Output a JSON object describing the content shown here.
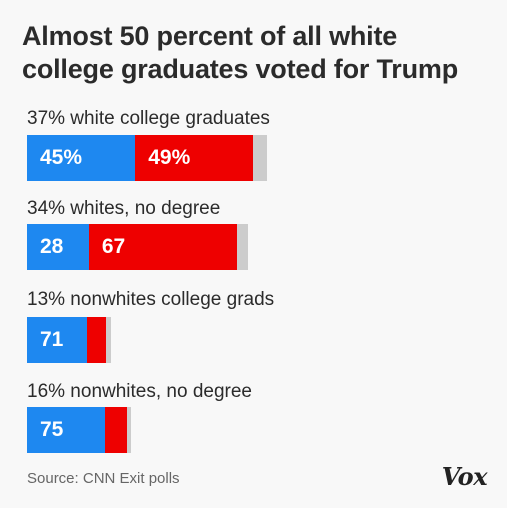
{
  "title": "Almost 50 percent of all white college graduates voted for Trump",
  "source": "Source: CNN Exit polls",
  "logo": "Vox",
  "colors": {
    "clinton": "#1e88f0",
    "trump": "#ee0000",
    "other": "#cccccc",
    "text": "#ffffff"
  },
  "chart_data": {
    "type": "bar",
    "orientation": "horizontal",
    "stacked": true,
    "title": "Almost 50 percent of all white college graduates voted for Trump",
    "xlim": [
      0,
      100
    ],
    "categories": [
      "37% white college graduates",
      "34% whites, no degree",
      "13% nonwhites college grads",
      "16% nonwhites, no degree"
    ],
    "electorate_share": [
      37,
      34,
      13,
      16
    ],
    "series": [
      {
        "values": [
          45,
          28,
          71,
          75
        ],
        "labels": [
          "45%",
          "28",
          "71",
          ""
        ],
        "color": "#1e88f0"
      },
      {
        "values": [
          49,
          67,
          23,
          21
        ],
        "labels": [
          "49%",
          "67",
          "",
          ""
        ],
        "color": "#ee0000"
      },
      {
        "values": [
          6,
          5,
          6,
          4
        ],
        "labels": [
          "",
          "",
          "",
          ""
        ],
        "color": "#cccccc"
      }
    ]
  }
}
